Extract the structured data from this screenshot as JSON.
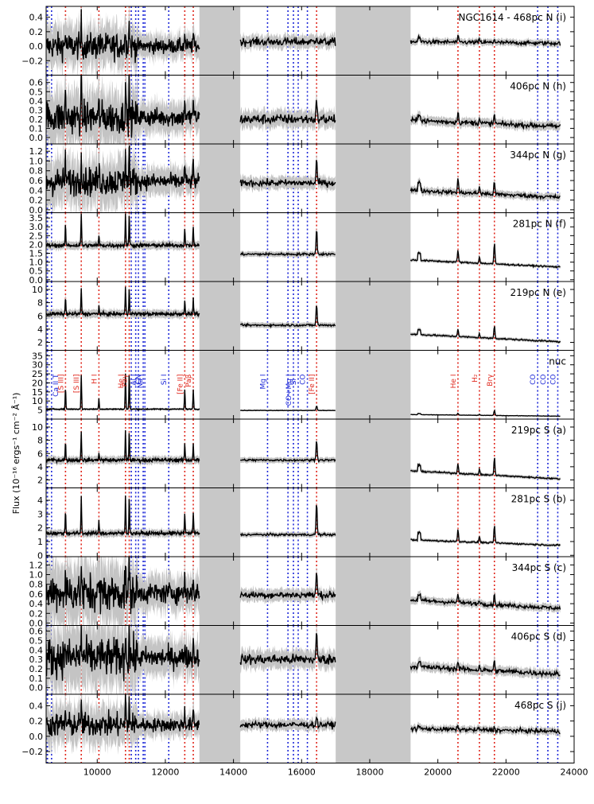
{
  "chart_data": {
    "type": "line",
    "ylabel": "Flux (10$^{-16}$ergs$^{-1}$cm$^{-2}$Å$^{-1}$)",
    "ylabel_display": "Flux (10⁻¹⁶ ergs⁻¹ cm⁻² Å⁻¹)",
    "xlim": [
      8500,
      24000
    ],
    "x_ticks": [
      10000,
      12000,
      14000,
      16000,
      18000,
      20000,
      22000,
      24000
    ],
    "x_tick_labels": [
      "10000",
      "12000",
      "14000",
      "16000",
      "18000",
      "20000",
      "22000",
      "24000"
    ],
    "segments": [
      [
        8500,
        13000
      ],
      [
        14200,
        17000
      ],
      [
        19200,
        23600
      ]
    ],
    "gaps": [
      [
        13000,
        14200
      ],
      [
        17000,
        19200
      ]
    ],
    "red_lines": [
      {
        "x": 9069,
        "label": "[S III]"
      },
      {
        "x": 9532,
        "label": "[S III]"
      },
      {
        "x": 10050,
        "label": "H I"
      },
      {
        "x": 10830,
        "label": "He I"
      },
      {
        "x": 10940,
        "label": "Paγ"
      },
      {
        "x": 12570,
        "label": "[Fe II]"
      },
      {
        "x": 12820,
        "label": "Paβ"
      },
      {
        "x": 16440,
        "label": "[Fe II]"
      },
      {
        "x": 20590,
        "label": "He I"
      },
      {
        "x": 21220,
        "label": "H₂"
      },
      {
        "x": 21660,
        "label": "Brγ"
      }
    ],
    "blue_lines": [
      {
        "x": 8500,
        "label": "Ca II T"
      },
      {
        "x": 8540,
        "label": ""
      },
      {
        "x": 8660,
        "label": ""
      },
      {
        "x": 11000,
        "label": ""
      },
      {
        "x": 11130,
        "label": ""
      },
      {
        "x": 11210,
        "label": "Al I"
      },
      {
        "x": 11350,
        "label": "CN"
      },
      {
        "x": 11400,
        "label": "Na I"
      },
      {
        "x": 12100,
        "label": "Si I"
      },
      {
        "x": 15000,
        "label": "Mg I"
      },
      {
        "x": 15600,
        "label": ""
      },
      {
        "x": 15760,
        "label": "CO+Mg I"
      },
      {
        "x": 15900,
        "label": "Si I"
      },
      {
        "x": 16170,
        "label": "CO"
      },
      {
        "x": 22930,
        "label": "CO"
      },
      {
        "x": 23230,
        "label": "CO"
      },
      {
        "x": 23520,
        "label": "CO"
      }
    ],
    "line_labels_panel": "nuc",
    "panels": [
      {
        "name": "NGC1614 - 468pc N (i)",
        "ylim": [
          -0.4,
          0.55
        ],
        "ticks": [
          -0.2,
          0.0,
          0.2,
          0.4
        ],
        "labels": [
          "−0.2",
          "0.0",
          "0.2",
          "0.4"
        ],
        "base": [
          0.0,
          0.06,
          0.05
        ],
        "amps": [
          0.35,
          0.1,
          0.08,
          0.05
        ],
        "noise": [
          0.08,
          0.04,
          0.02
        ]
      },
      {
        "name": "406pc N (h)",
        "ylim": [
          -0.07,
          0.68
        ],
        "ticks": [
          0.0,
          0.1,
          0.2,
          0.3,
          0.4,
          0.5,
          0.6
        ],
        "labels": [
          "0.0",
          "0.1",
          "0.2",
          "0.3",
          "0.4",
          "0.5",
          "0.6"
        ],
        "base": [
          0.22,
          0.2,
          0.15
        ],
        "amps": [
          0.4,
          0.2,
          0.12,
          0.1
        ],
        "noise": [
          0.08,
          0.04,
          0.02
        ]
      },
      {
        "name": "344pc N (g)",
        "ylim": [
          -0.06,
          1.35
        ],
        "ticks": [
          0.0,
          0.2,
          0.4,
          0.6,
          0.8,
          1.0,
          1.2
        ],
        "labels": [
          "0.0",
          "0.2",
          "0.4",
          "0.6",
          "0.8",
          "1.0",
          "1.2"
        ],
        "base": [
          0.58,
          0.55,
          0.32
        ],
        "amps": [
          0.75,
          0.5,
          0.3,
          0.25
        ],
        "noise": [
          0.13,
          0.05,
          0.03
        ]
      },
      {
        "name": "281pc N (f)",
        "ylim": [
          -0.1,
          3.8
        ],
        "ticks": [
          0.0,
          0.5,
          1.0,
          1.5,
          2.0,
          2.5,
          3.0,
          3.5
        ],
        "labels": [
          "0.0",
          "0.5",
          "1.0",
          "1.5",
          "2.0",
          "2.5",
          "3.0",
          "3.5"
        ],
        "base": [
          1.95,
          1.45,
          0.9
        ],
        "amps": [
          1.9,
          1.5,
          0.7,
          1.2
        ],
        "noise": [
          0.08,
          0.05,
          0.03
        ]
      },
      {
        "name": "219pc N (e)",
        "ylim": [
          0.8,
          11.2
        ],
        "ticks": [
          2,
          4,
          6,
          8,
          10
        ],
        "labels": [
          "2",
          "4",
          "6",
          "8",
          "10"
        ],
        "base": [
          6.3,
          4.6,
          2.6
        ],
        "amps": [
          4.2,
          3.2,
          1.2,
          2.0
        ],
        "noise": [
          0.2,
          0.12,
          0.08
        ]
      },
      {
        "name": "nuc",
        "ylim": [
          0,
          38
        ],
        "ticks": [
          5,
          10,
          15,
          20,
          25,
          30,
          35
        ],
        "labels": [
          "5",
          "10",
          "15",
          "20",
          "25",
          "30",
          "35"
        ],
        "base": [
          5.5,
          4.8,
          2.0
        ],
        "amps": [
          20,
          2.5,
          1.0,
          2.8
        ],
        "noise": [
          0.2,
          0.1,
          0.08
        ]
      },
      {
        "name": "219pc S (a)",
        "ylim": [
          0.8,
          11.2
        ],
        "ticks": [
          2,
          4,
          6,
          8,
          10
        ],
        "labels": [
          "2",
          "4",
          "6",
          "8",
          "10"
        ],
        "base": [
          5.0,
          5.0,
          2.7
        ],
        "amps": [
          4.5,
          3.2,
          1.5,
          2.8
        ],
        "noise": [
          0.2,
          0.12,
          0.08
        ]
      },
      {
        "name": "281pc S (b)",
        "ylim": [
          -0.1,
          4.9
        ],
        "ticks": [
          0,
          1,
          2,
          3,
          4
        ],
        "labels": [
          "0",
          "1",
          "2",
          "3",
          "4"
        ],
        "base": [
          1.6,
          1.5,
          0.9
        ],
        "amps": [
          2.8,
          2.4,
          0.9,
          1.3
        ],
        "noise": [
          0.1,
          0.06,
          0.04
        ]
      },
      {
        "name": "344pc S (c)",
        "ylim": [
          -0.05,
          1.37
        ],
        "ticks": [
          0.0,
          0.2,
          0.4,
          0.6,
          0.8,
          1.0,
          1.2
        ],
        "labels": [
          "0.0",
          "0.2",
          "0.4",
          "0.6",
          "0.8",
          "1.0",
          "1.2"
        ],
        "base": [
          0.62,
          0.58,
          0.38
        ],
        "amps": [
          0.55,
          0.5,
          0.2,
          0.2
        ],
        "noise": [
          0.17,
          0.05,
          0.03
        ]
      },
      {
        "name": "406pc S (d)",
        "ylim": [
          -0.07,
          0.66
        ],
        "ticks": [
          0.0,
          0.1,
          0.2,
          0.3,
          0.4,
          0.5,
          0.6
        ],
        "labels": [
          "0.0",
          "0.1",
          "0.2",
          "0.3",
          "0.4",
          "0.5",
          "0.6"
        ],
        "base": [
          0.32,
          0.3,
          0.18
        ],
        "amps": [
          0.3,
          0.28,
          0.08,
          0.1
        ],
        "noise": [
          0.09,
          0.04,
          0.02
        ]
      },
      {
        "name": "468pc S (j)",
        "ylim": [
          -0.35,
          0.55
        ],
        "ticks": [
          -0.2,
          0.0,
          0.2,
          0.4
        ],
        "labels": [
          "−0.2",
          "0.0",
          "0.2",
          "0.4"
        ],
        "base": [
          0.15,
          0.15,
          0.08
        ],
        "amps": [
          0.35,
          0.1,
          0.04,
          0.04
        ],
        "noise": [
          0.07,
          0.03,
          0.02
        ]
      }
    ]
  }
}
